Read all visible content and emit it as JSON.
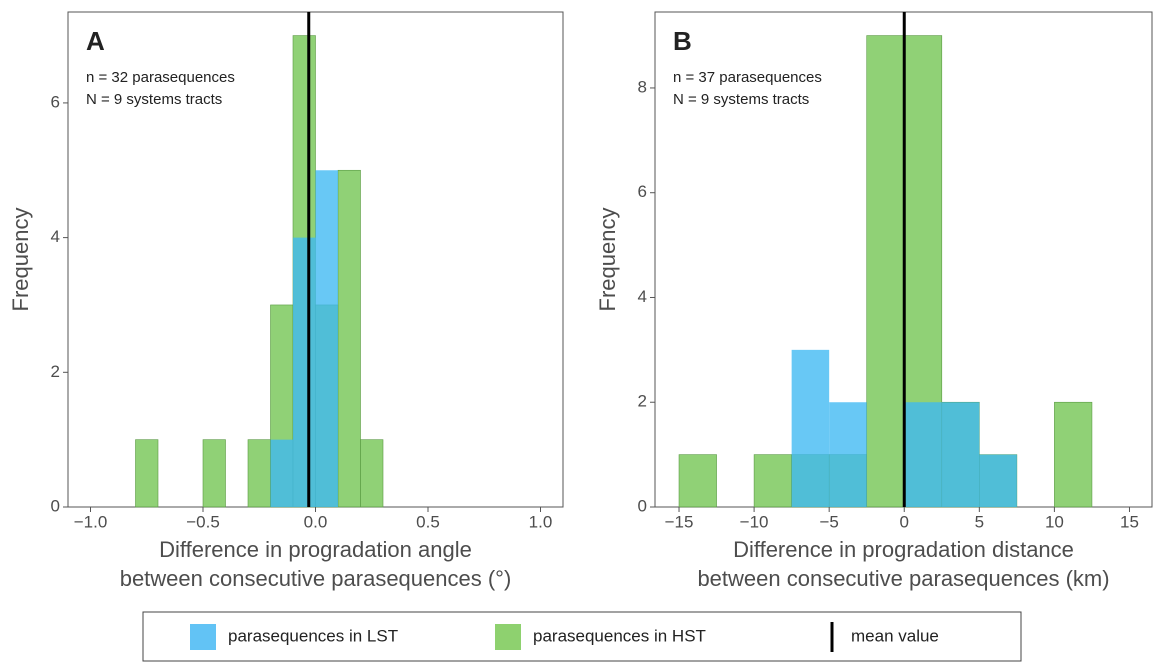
{
  "chart_data": [
    {
      "type": "histogram",
      "title": "A",
      "annotations": [
        "n = 32 parasequences",
        "N = 9 systems tracts"
      ],
      "xlabel": [
        "Difference in progradation angle",
        "between consecutive parasequences (°)"
      ],
      "ylabel": "Frequency",
      "bins": [
        -0.8,
        -0.7,
        -0.6,
        -0.5,
        -0.4,
        -0.3,
        -0.2,
        -0.1,
        0,
        0.1,
        0.2,
        0.3
      ],
      "series": [
        {
          "name": "parasequences in HST",
          "color": "#7cc95e",
          "values": [
            1,
            0,
            0,
            1,
            0,
            1,
            3,
            7,
            3,
            5,
            1
          ]
        },
        {
          "name": "parasequences in LST",
          "color": "#3db8f2",
          "values": [
            0,
            0,
            0,
            0,
            0,
            0,
            1,
            4,
            5,
            0,
            0
          ]
        }
      ],
      "mean": -0.03,
      "mean_label": "mean value",
      "xlim": [
        -1.1,
        1.1
      ],
      "xticks": [
        {
          "value": -1,
          "label": "−1.0"
        },
        {
          "value": -0.5,
          "label": "−0.5"
        },
        {
          "value": 0,
          "label": "0.0"
        },
        {
          "value": 0.5,
          "label": "0.5"
        },
        {
          "value": 1,
          "label": "1.0"
        }
      ],
      "ylim": [
        0,
        7.35
      ],
      "yticks": [
        0,
        2,
        4,
        6
      ]
    },
    {
      "type": "histogram",
      "title": "B",
      "annotations": [
        "n = 37 parasequences",
        "N = 9 systems tracts"
      ],
      "xlabel": [
        "Difference in progradation distance",
        "between consecutive parasequences (km)"
      ],
      "ylabel": "Frequency",
      "bins": [
        -15,
        -12.5,
        -10,
        -7.5,
        -5,
        -2.5,
        0,
        2.5,
        5,
        7.5,
        10,
        12.5
      ],
      "series": [
        {
          "name": "parasequences in HST",
          "color": "#7cc95e",
          "values": [
            1,
            0,
            1,
            1,
            1,
            9,
            9,
            2,
            1,
            0,
            2
          ]
        },
        {
          "name": "parasequences in LST",
          "color": "#3db8f2",
          "values": [
            0,
            0,
            0,
            3,
            2,
            0,
            2,
            2,
            1,
            0,
            0
          ]
        }
      ],
      "mean": 0,
      "xlim": [
        -16.6,
        16.5
      ],
      "xticks": [
        {
          "value": -15,
          "label": "−15"
        },
        {
          "value": -10,
          "label": "−10"
        },
        {
          "value": -5,
          "label": "−5"
        },
        0,
        5,
        10,
        15
      ],
      "ylim": [
        0,
        9.45
      ],
      "yticks": [
        0,
        2,
        4,
        6,
        8
      ]
    }
  ]
}
